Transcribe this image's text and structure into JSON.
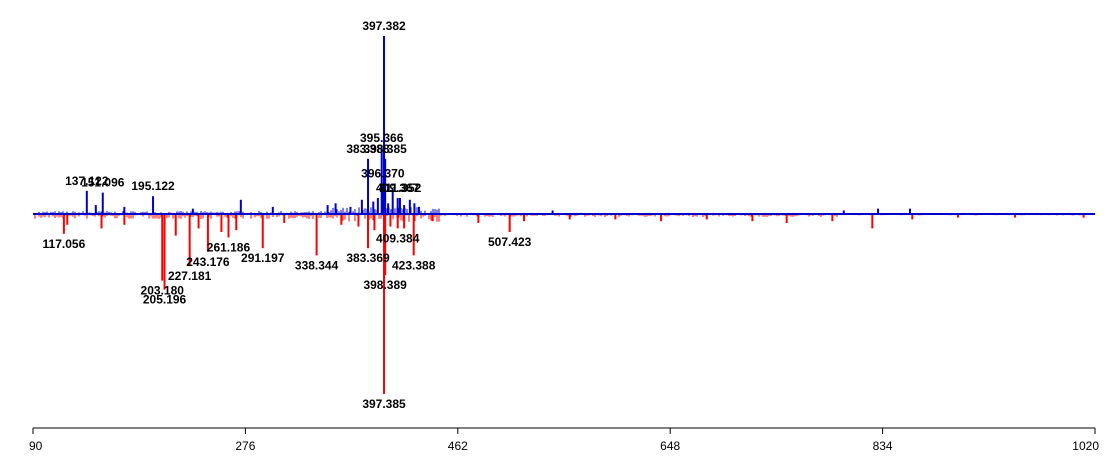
{
  "chart_data": {
    "type": "bar",
    "subtype": "mirror-spectrum",
    "title": "",
    "xlabel": "",
    "ylabel": "",
    "xlim": [
      90,
      1020
    ],
    "x_ticks": [
      "90",
      "276",
      "462",
      "648",
      "834",
      "1020"
    ],
    "ylim_top": [
      0,
      100
    ],
    "ylim_bottom": [
      0,
      100
    ],
    "grid": false,
    "legend": "none",
    "colors": {
      "top": "#0000cc",
      "bottom": "#ff0000",
      "axis": "#000000"
    },
    "series": [
      {
        "side": "top",
        "peaks": [
          {
            "x": 397.382,
            "y": 100,
            "label": "397.382"
          },
          {
            "x": 395.366,
            "y": 37,
            "label": "395.366"
          },
          {
            "x": 383.388,
            "y": 31,
            "label": "383.388"
          },
          {
            "x": 398.385,
            "y": 31,
            "label": "398.385"
          },
          {
            "x": 396.37,
            "y": 17,
            "label": "396.370"
          },
          {
            "x": 409.367,
            "y": 9,
            "label": "409.367"
          },
          {
            "x": 411.352,
            "y": 9,
            "label": "411.352"
          },
          {
            "x": 137.122,
            "y": 13,
            "label": "137.122"
          },
          {
            "x": 151.096,
            "y": 12,
            "label": "151.096"
          },
          {
            "x": 195.122,
            "y": 10,
            "label": "195.122"
          },
          {
            "x": 145.0,
            "y": 5
          },
          {
            "x": 170.0,
            "y": 4
          },
          {
            "x": 230.0,
            "y": 3
          },
          {
            "x": 272.0,
            "y": 8
          },
          {
            "x": 300.0,
            "y": 4
          },
          {
            "x": 348.0,
            "y": 5
          },
          {
            "x": 355.0,
            "y": 6
          },
          {
            "x": 368.0,
            "y": 4
          },
          {
            "x": 378.0,
            "y": 8
          },
          {
            "x": 388.0,
            "y": 7
          },
          {
            "x": 392.0,
            "y": 9
          },
          {
            "x": 401.0,
            "y": 6
          },
          {
            "x": 405.0,
            "y": 14
          },
          {
            "x": 415.0,
            "y": 5
          },
          {
            "x": 420.0,
            "y": 8
          },
          {
            "x": 424.0,
            "y": 6
          },
          {
            "x": 428.0,
            "y": 4
          },
          {
            "x": 545.0,
            "y": 2
          },
          {
            "x": 800.0,
            "y": 2
          },
          {
            "x": 830.0,
            "y": 3
          },
          {
            "x": 858.0,
            "y": 3
          }
        ]
      },
      {
        "side": "bottom",
        "peaks": [
          {
            "x": 397.385,
            "y": 100,
            "label": "397.385"
          },
          {
            "x": 117.056,
            "y": 11,
            "label": "117.056"
          },
          {
            "x": 203.18,
            "y": 37,
            "label": "203.180"
          },
          {
            "x": 205.196,
            "y": 42,
            "label": "205.196"
          },
          {
            "x": 227.181,
            "y": 29,
            "label": "227.181"
          },
          {
            "x": 243.176,
            "y": 21,
            "label": "243.176"
          },
          {
            "x": 261.186,
            "y": 13,
            "label": "261.186"
          },
          {
            "x": 291.197,
            "y": 19,
            "label": "291.197"
          },
          {
            "x": 338.344,
            "y": 23,
            "label": "338.344"
          },
          {
            "x": 383.369,
            "y": 19,
            "label": "383.369"
          },
          {
            "x": 398.389,
            "y": 34,
            "label": "398.389"
          },
          {
            "x": 409.384,
            "y": 8,
            "label": "409.384"
          },
          {
            "x": 423.388,
            "y": 23,
            "label": "423.388"
          },
          {
            "x": 507.423,
            "y": 10,
            "label": "507.423"
          },
          {
            "x": 120.0,
            "y": 6
          },
          {
            "x": 150.0,
            "y": 8
          },
          {
            "x": 170.0,
            "y": 6
          },
          {
            "x": 215.0,
            "y": 12
          },
          {
            "x": 235.0,
            "y": 8
          },
          {
            "x": 255.0,
            "y": 10
          },
          {
            "x": 268.0,
            "y": 9
          },
          {
            "x": 310.0,
            "y": 5
          },
          {
            "x": 360.0,
            "y": 6
          },
          {
            "x": 375.0,
            "y": 7
          },
          {
            "x": 389.0,
            "y": 9
          },
          {
            "x": 403.0,
            "y": 7
          },
          {
            "x": 415.0,
            "y": 8
          },
          {
            "x": 440.0,
            "y": 4
          },
          {
            "x": 480.0,
            "y": 5
          },
          {
            "x": 520.0,
            "y": 4
          },
          {
            "x": 560.0,
            "y": 3
          },
          {
            "x": 600.0,
            "y": 3
          },
          {
            "x": 640.0,
            "y": 4
          },
          {
            "x": 680.0,
            "y": 3
          },
          {
            "x": 720.0,
            "y": 4
          },
          {
            "x": 750.0,
            "y": 5
          },
          {
            "x": 790.0,
            "y": 4
          },
          {
            "x": 825.0,
            "y": 8
          },
          {
            "x": 860.0,
            "y": 3
          },
          {
            "x": 900.0,
            "y": 2
          },
          {
            "x": 950.0,
            "y": 2
          },
          {
            "x": 1010.0,
            "y": 2
          }
        ]
      }
    ]
  }
}
